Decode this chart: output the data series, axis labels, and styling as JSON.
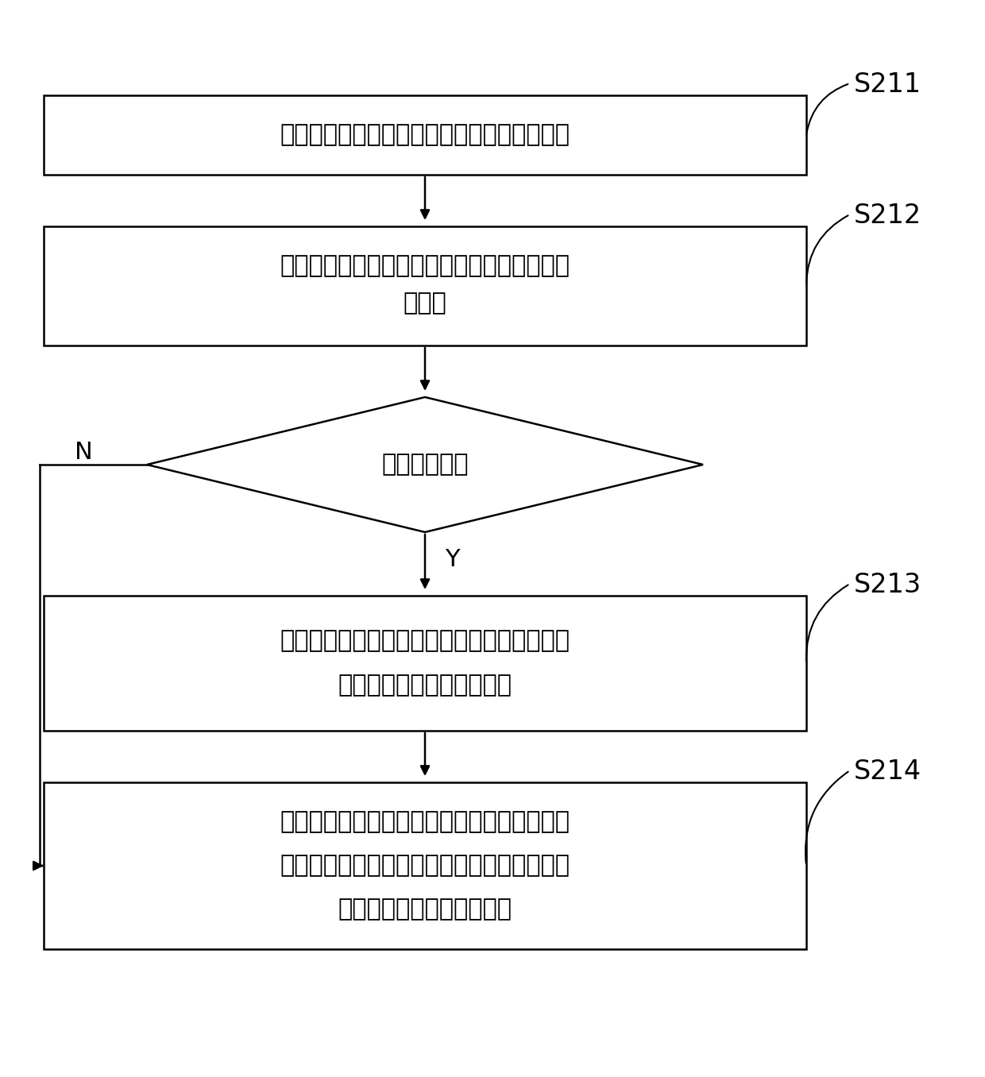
{
  "background_color": "#ffffff",
  "step_labels": [
    "S211",
    "S212",
    "S213",
    "S214"
  ],
  "box1_text": "公链提取交易条件中当前交易指定的证通数量",
  "box2_line1": "公链判断交易节点拥有的证通余额是否满足证",
  "box2_line2": "通数量",
  "diamond_text": "满足证通数量",
  "box3_line1": "如果交易节点拥有的证通余额满足证通数量，",
  "box3_line2": "向发起平行链发送查询结果",
  "box4_line1": "如果交易发起链拥有的证通余额不满足证通数",
  "box4_line2": "量，公链取消向发起平行链发送查询结果；以",
  "box4_line3": "及向交易节点发送提示信息",
  "N_label": "N",
  "Y_label": "Y",
  "text_color": "#000000",
  "box_edge_color": "#000000",
  "box_fill_color": "#ffffff",
  "arrow_color": "#000000",
  "font_size": 22,
  "label_font_size": 22,
  "step_font_size": 24,
  "figwidth": 12.4,
  "figheight": 13.56,
  "dpi": 100
}
